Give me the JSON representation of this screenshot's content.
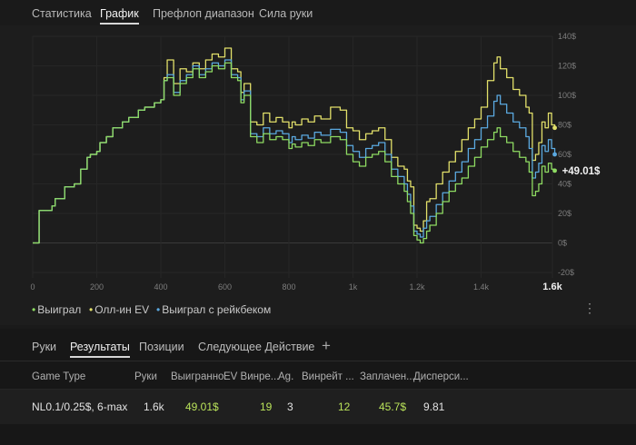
{
  "tabs": [
    "Статистика",
    "График",
    "Префлоп диапазон",
    "Сила руки"
  ],
  "active_tab": "График",
  "chart_data": {
    "type": "line",
    "x_ticks": [
      "0",
      "200",
      "400",
      "600",
      "800",
      "1k",
      "1.2k",
      "1.4k"
    ],
    "x_max_label": "1.6k",
    "y_ticks": [
      "-20$",
      "0$",
      "20$",
      "40$",
      "60$",
      "80$",
      "100$",
      "120$",
      "140$"
    ],
    "ylim": [
      -20,
      140
    ],
    "xlim": [
      0,
      1600
    ],
    "end_value_label": "+49.01$",
    "series": [
      {
        "name": "Выиграл",
        "color": "#8edb62",
        "points": [
          [
            0,
            0
          ],
          [
            20,
            22
          ],
          [
            60,
            25
          ],
          [
            70,
            30
          ],
          [
            100,
            38
          ],
          [
            130,
            40
          ],
          [
            150,
            50
          ],
          [
            170,
            58
          ],
          [
            180,
            60
          ],
          [
            200,
            62
          ],
          [
            210,
            68
          ],
          [
            230,
            72
          ],
          [
            250,
            78
          ],
          [
            280,
            82
          ],
          [
            300,
            85
          ],
          [
            330,
            90
          ],
          [
            350,
            92
          ],
          [
            380,
            95
          ],
          [
            400,
            97
          ],
          [
            410,
            110
          ],
          [
            420,
            112
          ],
          [
            440,
            100
          ],
          [
            460,
            108
          ],
          [
            480,
            112
          ],
          [
            500,
            118
          ],
          [
            520,
            112
          ],
          [
            540,
            116
          ],
          [
            560,
            120
          ],
          [
            580,
            118
          ],
          [
            600,
            122
          ],
          [
            620,
            112
          ],
          [
            640,
            110
          ],
          [
            650,
            95
          ],
          [
            660,
            100
          ],
          [
            680,
            72
          ],
          [
            700,
            68
          ],
          [
            720,
            74
          ],
          [
            740,
            70
          ],
          [
            760,
            72
          ],
          [
            780,
            70
          ],
          [
            800,
            64
          ],
          [
            810,
            67
          ],
          [
            820,
            65
          ],
          [
            840,
            68
          ],
          [
            860,
            66
          ],
          [
            880,
            70
          ],
          [
            900,
            68
          ],
          [
            930,
            72
          ],
          [
            960,
            70
          ],
          [
            980,
            60
          ],
          [
            1000,
            55
          ],
          [
            1020,
            52
          ],
          [
            1040,
            58
          ],
          [
            1060,
            60
          ],
          [
            1080,
            62
          ],
          [
            1100,
            55
          ],
          [
            1120,
            45
          ],
          [
            1140,
            40
          ],
          [
            1160,
            35
          ],
          [
            1170,
            28
          ],
          [
            1180,
            20
          ],
          [
            1190,
            5
          ],
          [
            1200,
            2
          ],
          [
            1210,
            0
          ],
          [
            1220,
            3
          ],
          [
            1230,
            8
          ],
          [
            1240,
            12
          ],
          [
            1260,
            20
          ],
          [
            1280,
            28
          ],
          [
            1300,
            35
          ],
          [
            1320,
            40
          ],
          [
            1340,
            44
          ],
          [
            1360,
            52
          ],
          [
            1380,
            58
          ],
          [
            1400,
            65
          ],
          [
            1420,
            70
          ],
          [
            1440,
            75
          ],
          [
            1450,
            78
          ],
          [
            1460,
            72
          ],
          [
            1480,
            68
          ],
          [
            1500,
            62
          ],
          [
            1520,
            58
          ],
          [
            1540,
            55
          ],
          [
            1550,
            48
          ],
          [
            1560,
            32
          ],
          [
            1570,
            35
          ],
          [
            1580,
            40
          ],
          [
            1590,
            52
          ],
          [
            1600,
            48
          ],
          [
            1610,
            54
          ],
          [
            1620,
            50
          ],
          [
            1630,
            49
          ]
        ]
      },
      {
        "name": "Олл-ин EV",
        "color": "#e2e06a",
        "points": [
          [
            0,
            0
          ],
          [
            20,
            22
          ],
          [
            60,
            25
          ],
          [
            70,
            30
          ],
          [
            100,
            38
          ],
          [
            130,
            40
          ],
          [
            150,
            50
          ],
          [
            170,
            58
          ],
          [
            180,
            60
          ],
          [
            200,
            62
          ],
          [
            210,
            68
          ],
          [
            230,
            72
          ],
          [
            250,
            78
          ],
          [
            280,
            82
          ],
          [
            300,
            85
          ],
          [
            330,
            90
          ],
          [
            350,
            92
          ],
          [
            380,
            95
          ],
          [
            400,
            97
          ],
          [
            410,
            112
          ],
          [
            420,
            124
          ],
          [
            440,
            108
          ],
          [
            460,
            118
          ],
          [
            480,
            116
          ],
          [
            500,
            122
          ],
          [
            520,
            118
          ],
          [
            540,
            124
          ],
          [
            560,
            128
          ],
          [
            580,
            126
          ],
          [
            600,
            132
          ],
          [
            620,
            118
          ],
          [
            640,
            116
          ],
          [
            650,
            102
          ],
          [
            660,
            108
          ],
          [
            680,
            82
          ],
          [
            700,
            80
          ],
          [
            720,
            88
          ],
          [
            740,
            82
          ],
          [
            760,
            85
          ],
          [
            780,
            82
          ],
          [
            800,
            78
          ],
          [
            810,
            82
          ],
          [
            820,
            80
          ],
          [
            840,
            84
          ],
          [
            860,
            82
          ],
          [
            880,
            86
          ],
          [
            900,
            84
          ],
          [
            930,
            92
          ],
          [
            960,
            90
          ],
          [
            980,
            78
          ],
          [
            1000,
            76
          ],
          [
            1020,
            70
          ],
          [
            1040,
            74
          ],
          [
            1060,
            76
          ],
          [
            1080,
            78
          ],
          [
            1100,
            70
          ],
          [
            1120,
            58
          ],
          [
            1140,
            52
          ],
          [
            1160,
            50
          ],
          [
            1170,
            42
          ],
          [
            1180,
            38
          ],
          [
            1190,
            12
          ],
          [
            1200,
            10
          ],
          [
            1210,
            8
          ],
          [
            1220,
            15
          ],
          [
            1230,
            28
          ],
          [
            1240,
            30
          ],
          [
            1260,
            40
          ],
          [
            1280,
            48
          ],
          [
            1300,
            55
          ],
          [
            1320,
            62
          ],
          [
            1340,
            70
          ],
          [
            1360,
            78
          ],
          [
            1380,
            84
          ],
          [
            1400,
            92
          ],
          [
            1420,
            110
          ],
          [
            1440,
            122
          ],
          [
            1450,
            126
          ],
          [
            1460,
            118
          ],
          [
            1480,
            112
          ],
          [
            1500,
            104
          ],
          [
            1520,
            100
          ],
          [
            1540,
            92
          ],
          [
            1550,
            88
          ],
          [
            1560,
            56
          ],
          [
            1570,
            60
          ],
          [
            1580,
            68
          ],
          [
            1590,
            82
          ],
          [
            1600,
            78
          ],
          [
            1610,
            88
          ],
          [
            1620,
            80
          ],
          [
            1630,
            78
          ]
        ]
      },
      {
        "name": "Выиграл с рейкбеком",
        "color": "#5ba9e0",
        "points": [
          [
            0,
            0
          ],
          [
            20,
            22
          ],
          [
            60,
            25
          ],
          [
            70,
            30
          ],
          [
            100,
            38
          ],
          [
            130,
            40
          ],
          [
            150,
            50
          ],
          [
            170,
            58
          ],
          [
            180,
            60
          ],
          [
            200,
            62
          ],
          [
            210,
            68
          ],
          [
            230,
            72
          ],
          [
            250,
            78
          ],
          [
            280,
            82
          ],
          [
            300,
            85
          ],
          [
            330,
            90
          ],
          [
            350,
            92
          ],
          [
            380,
            95
          ],
          [
            400,
            97
          ],
          [
            410,
            110
          ],
          [
            420,
            114
          ],
          [
            440,
            102
          ],
          [
            460,
            110
          ],
          [
            480,
            114
          ],
          [
            500,
            120
          ],
          [
            520,
            114
          ],
          [
            540,
            118
          ],
          [
            560,
            122
          ],
          [
            580,
            120
          ],
          [
            600,
            124
          ],
          [
            620,
            114
          ],
          [
            640,
            112
          ],
          [
            650,
            97
          ],
          [
            660,
            103
          ],
          [
            680,
            74
          ],
          [
            700,
            72
          ],
          [
            720,
            78
          ],
          [
            740,
            74
          ],
          [
            760,
            76
          ],
          [
            780,
            74
          ],
          [
            800,
            68
          ],
          [
            810,
            72
          ],
          [
            820,
            70
          ],
          [
            840,
            73
          ],
          [
            860,
            71
          ],
          [
            880,
            75
          ],
          [
            900,
            73
          ],
          [
            930,
            77
          ],
          [
            960,
            75
          ],
          [
            980,
            66
          ],
          [
            1000,
            62
          ],
          [
            1020,
            58
          ],
          [
            1040,
            64
          ],
          [
            1060,
            66
          ],
          [
            1080,
            68
          ],
          [
            1100,
            60
          ],
          [
            1120,
            50
          ],
          [
            1140,
            45
          ],
          [
            1160,
            40
          ],
          [
            1170,
            33
          ],
          [
            1180,
            25
          ],
          [
            1190,
            8
          ],
          [
            1200,
            6
          ],
          [
            1210,
            4
          ],
          [
            1220,
            10
          ],
          [
            1230,
            15
          ],
          [
            1240,
            18
          ],
          [
            1260,
            26
          ],
          [
            1280,
            34
          ],
          [
            1300,
            42
          ],
          [
            1320,
            48
          ],
          [
            1340,
            55
          ],
          [
            1360,
            64
          ],
          [
            1380,
            70
          ],
          [
            1400,
            78
          ],
          [
            1420,
            86
          ],
          [
            1440,
            96
          ],
          [
            1450,
            100
          ],
          [
            1460,
            94
          ],
          [
            1480,
            88
          ],
          [
            1500,
            82
          ],
          [
            1520,
            78
          ],
          [
            1540,
            72
          ],
          [
            1550,
            64
          ],
          [
            1560,
            44
          ],
          [
            1570,
            48
          ],
          [
            1580,
            54
          ],
          [
            1590,
            66
          ],
          [
            1600,
            62
          ],
          [
            1610,
            70
          ],
          [
            1620,
            64
          ],
          [
            1630,
            60
          ]
        ]
      }
    ]
  },
  "legend": [
    {
      "label": "Выиграл",
      "color": "#8edb62"
    },
    {
      "label": "Олл-ин EV",
      "color": "#e2e06a"
    },
    {
      "label": "Выиграл с рейкбеком",
      "color": "#5ba9e0"
    }
  ],
  "bottom_tabs": [
    "Руки",
    "Результаты",
    "Позиции",
    "Следующее Действие"
  ],
  "active_bottom_tab": "Результаты",
  "add_tab_label": "+",
  "table": {
    "headers": [
      "Game Type",
      "Руки",
      "Выигранно",
      "EV Винре...",
      "Ag.",
      "Винрейт ...",
      "Заплачен...",
      "Дисперси..."
    ],
    "row": [
      "NL0.1/0.25$, 6-max",
      "1.6k",
      "49.01$",
      "19",
      "3",
      "12",
      "45.7$",
      "9.81"
    ]
  }
}
